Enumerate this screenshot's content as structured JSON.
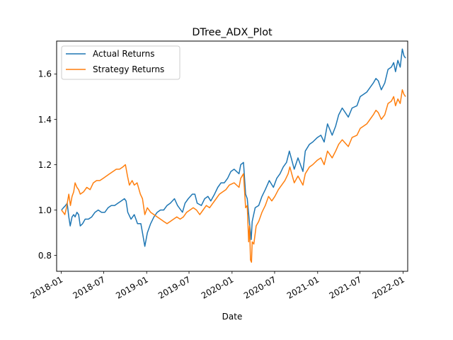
{
  "chart_data": {
    "type": "line",
    "title": "DTree_ADX_Plot",
    "xlabel": "Date",
    "ylabel": "",
    "xlim": [
      "2017-12-12",
      "2022-01-21"
    ],
    "ylim": [
      0.73,
      1.745
    ],
    "x_ticks": [
      {
        "date": "2018-01-01",
        "label": "2018-01"
      },
      {
        "date": "2018-07-01",
        "label": "2018-07"
      },
      {
        "date": "2019-01-01",
        "label": "2019-01"
      },
      {
        "date": "2019-07-01",
        "label": "2019-07"
      },
      {
        "date": "2020-01-01",
        "label": "2020-01"
      },
      {
        "date": "2020-07-01",
        "label": "2020-07"
      },
      {
        "date": "2021-01-01",
        "label": "2021-01"
      },
      {
        "date": "2021-07-01",
        "label": "2021-07"
      },
      {
        "date": "2022-01-01",
        "label": "2022-01"
      }
    ],
    "y_ticks": [
      {
        "value": 0.8,
        "label": "0.8"
      },
      {
        "value": 1.0,
        "label": "1.0"
      },
      {
        "value": 1.2,
        "label": "1.2"
      },
      {
        "value": 1.4,
        "label": "1.4"
      },
      {
        "value": 1.6,
        "label": "1.6"
      }
    ],
    "grid": false,
    "legend": "upper-left",
    "series": [
      {
        "name": "Actual Returns",
        "color": "#1f77b4",
        "points": [
          [
            "2018-01-02",
            1.0
          ],
          [
            "2018-01-10",
            1.01
          ],
          [
            "2018-01-19",
            1.02
          ],
          [
            "2018-01-26",
            1.03
          ],
          [
            "2018-02-02",
            0.97
          ],
          [
            "2018-02-08",
            0.93
          ],
          [
            "2018-02-16",
            0.97
          ],
          [
            "2018-02-23",
            0.98
          ],
          [
            "2018-03-01",
            0.97
          ],
          [
            "2018-03-09",
            0.99
          ],
          [
            "2018-03-16",
            0.98
          ],
          [
            "2018-03-23",
            0.93
          ],
          [
            "2018-04-02",
            0.94
          ],
          [
            "2018-04-13",
            0.96
          ],
          [
            "2018-04-27",
            0.96
          ],
          [
            "2018-05-11",
            0.97
          ],
          [
            "2018-05-25",
            0.99
          ],
          [
            "2018-06-08",
            1.0
          ],
          [
            "2018-06-22",
            0.99
          ],
          [
            "2018-07-06",
            0.99
          ],
          [
            "2018-07-20",
            1.01
          ],
          [
            "2018-08-03",
            1.02
          ],
          [
            "2018-08-17",
            1.02
          ],
          [
            "2018-08-31",
            1.03
          ],
          [
            "2018-09-14",
            1.04
          ],
          [
            "2018-09-28",
            1.05
          ],
          [
            "2018-10-05",
            1.04
          ],
          [
            "2018-10-12",
            0.99
          ],
          [
            "2018-10-26",
            0.96
          ],
          [
            "2018-11-09",
            0.98
          ],
          [
            "2018-11-23",
            0.94
          ],
          [
            "2018-12-07",
            0.94
          ],
          [
            "2018-12-14",
            0.9
          ],
          [
            "2018-12-24",
            0.84
          ],
          [
            "2019-01-04",
            0.9
          ],
          [
            "2019-01-18",
            0.94
          ],
          [
            "2019-02-01",
            0.97
          ],
          [
            "2019-02-15",
            0.99
          ],
          [
            "2019-03-01",
            1.0
          ],
          [
            "2019-03-15",
            1.0
          ],
          [
            "2019-03-29",
            1.02
          ],
          [
            "2019-04-12",
            1.03
          ],
          [
            "2019-04-30",
            1.05
          ],
          [
            "2019-05-13",
            1.02
          ],
          [
            "2019-06-03",
            0.99
          ],
          [
            "2019-06-14",
            1.03
          ],
          [
            "2019-06-28",
            1.05
          ],
          [
            "2019-07-15",
            1.07
          ],
          [
            "2019-07-26",
            1.07
          ],
          [
            "2019-08-05",
            1.03
          ],
          [
            "2019-08-23",
            1.02
          ],
          [
            "2019-09-06",
            1.05
          ],
          [
            "2019-09-20",
            1.06
          ],
          [
            "2019-10-02",
            1.04
          ],
          [
            "2019-10-18",
            1.07
          ],
          [
            "2019-11-01",
            1.1
          ],
          [
            "2019-11-15",
            1.12
          ],
          [
            "2019-11-29",
            1.12
          ],
          [
            "2019-12-13",
            1.14
          ],
          [
            "2019-12-27",
            1.17
          ],
          [
            "2020-01-10",
            1.18
          ],
          [
            "2020-01-31",
            1.16
          ],
          [
            "2020-02-07",
            1.2
          ],
          [
            "2020-02-19",
            1.21
          ],
          [
            "2020-02-28",
            1.07
          ],
          [
            "2020-03-06",
            1.05
          ],
          [
            "2020-03-16",
            0.94
          ],
          [
            "2020-03-23",
            0.87
          ],
          [
            "2020-03-27",
            0.95
          ],
          [
            "2020-04-09",
            1.01
          ],
          [
            "2020-04-24",
            1.02
          ],
          [
            "2020-05-08",
            1.06
          ],
          [
            "2020-05-22",
            1.09
          ],
          [
            "2020-06-08",
            1.13
          ],
          [
            "2020-06-26",
            1.1
          ],
          [
            "2020-07-10",
            1.14
          ],
          [
            "2020-07-24",
            1.16
          ],
          [
            "2020-08-07",
            1.19
          ],
          [
            "2020-08-21",
            1.21
          ],
          [
            "2020-09-02",
            1.26
          ],
          [
            "2020-09-23",
            1.18
          ],
          [
            "2020-10-09",
            1.23
          ],
          [
            "2020-10-30",
            1.17
          ],
          [
            "2020-11-09",
            1.26
          ],
          [
            "2020-11-27",
            1.29
          ],
          [
            "2020-12-11",
            1.3
          ],
          [
            "2020-12-31",
            1.32
          ],
          [
            "2021-01-15",
            1.33
          ],
          [
            "2021-01-29",
            1.3
          ],
          [
            "2021-02-12",
            1.38
          ],
          [
            "2021-03-04",
            1.33
          ],
          [
            "2021-03-19",
            1.37
          ],
          [
            "2021-04-01",
            1.42
          ],
          [
            "2021-04-16",
            1.45
          ],
          [
            "2021-05-12",
            1.41
          ],
          [
            "2021-05-28",
            1.45
          ],
          [
            "2021-06-18",
            1.46
          ],
          [
            "2021-07-02",
            1.5
          ],
          [
            "2021-07-16",
            1.51
          ],
          [
            "2021-07-30",
            1.52
          ],
          [
            "2021-08-13",
            1.54
          ],
          [
            "2021-08-27",
            1.56
          ],
          [
            "2021-09-07",
            1.58
          ],
          [
            "2021-09-17",
            1.57
          ],
          [
            "2021-09-30",
            1.53
          ],
          [
            "2021-10-15",
            1.56
          ],
          [
            "2021-10-29",
            1.62
          ],
          [
            "2021-11-12",
            1.63
          ],
          [
            "2021-11-22",
            1.65
          ],
          [
            "2021-11-30",
            1.61
          ],
          [
            "2021-12-10",
            1.66
          ],
          [
            "2021-12-20",
            1.63
          ],
          [
            "2021-12-29",
            1.71
          ],
          [
            "2022-01-05",
            1.68
          ],
          [
            "2022-01-12",
            1.67
          ]
        ]
      },
      {
        "name": "Strategy Returns",
        "color": "#ff7f0e",
        "points": [
          [
            "2018-01-02",
            1.0
          ],
          [
            "2018-01-09",
            0.99
          ],
          [
            "2018-01-16",
            0.98
          ],
          [
            "2018-01-23",
            1.01
          ],
          [
            "2018-02-02",
            1.07
          ],
          [
            "2018-02-09",
            1.02
          ],
          [
            "2018-02-16",
            1.06
          ],
          [
            "2018-02-23",
            1.08
          ],
          [
            "2018-03-01",
            1.12
          ],
          [
            "2018-03-09",
            1.1
          ],
          [
            "2018-03-16",
            1.09
          ],
          [
            "2018-03-23",
            1.07
          ],
          [
            "2018-04-06",
            1.08
          ],
          [
            "2018-04-20",
            1.1
          ],
          [
            "2018-05-04",
            1.09
          ],
          [
            "2018-05-18",
            1.12
          ],
          [
            "2018-06-01",
            1.13
          ],
          [
            "2018-06-15",
            1.13
          ],
          [
            "2018-06-29",
            1.14
          ],
          [
            "2018-07-13",
            1.15
          ],
          [
            "2018-07-27",
            1.16
          ],
          [
            "2018-08-10",
            1.17
          ],
          [
            "2018-08-24",
            1.18
          ],
          [
            "2018-09-07",
            1.18
          ],
          [
            "2018-09-21",
            1.19
          ],
          [
            "2018-10-02",
            1.2
          ],
          [
            "2018-10-11",
            1.15
          ],
          [
            "2018-10-19",
            1.11
          ],
          [
            "2018-10-31",
            1.13
          ],
          [
            "2018-11-09",
            1.11
          ],
          [
            "2018-11-21",
            1.12
          ],
          [
            "2018-12-05",
            1.07
          ],
          [
            "2018-12-14",
            1.05
          ],
          [
            "2018-12-24",
            0.98
          ],
          [
            "2019-01-04",
            1.01
          ],
          [
            "2019-01-18",
            0.99
          ],
          [
            "2019-02-01",
            0.98
          ],
          [
            "2019-02-15",
            0.97
          ],
          [
            "2019-03-01",
            0.96
          ],
          [
            "2019-03-15",
            0.95
          ],
          [
            "2019-03-29",
            0.94
          ],
          [
            "2019-04-12",
            0.95
          ],
          [
            "2019-04-26",
            0.96
          ],
          [
            "2019-05-10",
            0.97
          ],
          [
            "2019-05-24",
            0.96
          ],
          [
            "2019-06-07",
            0.97
          ],
          [
            "2019-06-21",
            0.99
          ],
          [
            "2019-07-05",
            1.0
          ],
          [
            "2019-07-19",
            1.01
          ],
          [
            "2019-08-02",
            1.0
          ],
          [
            "2019-08-16",
            0.98
          ],
          [
            "2019-08-30",
            1.0
          ],
          [
            "2019-09-13",
            1.02
          ],
          [
            "2019-09-27",
            1.01
          ],
          [
            "2019-10-11",
            1.03
          ],
          [
            "2019-10-25",
            1.05
          ],
          [
            "2019-11-08",
            1.07
          ],
          [
            "2019-11-22",
            1.08
          ],
          [
            "2019-12-06",
            1.09
          ],
          [
            "2019-12-20",
            1.11
          ],
          [
            "2020-01-10",
            1.12
          ],
          [
            "2020-01-31",
            1.1
          ],
          [
            "2020-02-07",
            1.14
          ],
          [
            "2020-02-19",
            1.16
          ],
          [
            "2020-02-28",
            1.01
          ],
          [
            "2020-03-06",
            1.02
          ],
          [
            "2020-03-12",
            0.86
          ],
          [
            "2020-03-16",
            0.93
          ],
          [
            "2020-03-20",
            0.78
          ],
          [
            "2020-03-24",
            0.77
          ],
          [
            "2020-03-27",
            0.86
          ],
          [
            "2020-04-03",
            0.85
          ],
          [
            "2020-04-13",
            0.93
          ],
          [
            "2020-04-24",
            0.95
          ],
          [
            "2020-05-08",
            0.99
          ],
          [
            "2020-05-22",
            1.02
          ],
          [
            "2020-06-05",
            1.06
          ],
          [
            "2020-06-19",
            1.04
          ],
          [
            "2020-07-02",
            1.06
          ],
          [
            "2020-07-17",
            1.09
          ],
          [
            "2020-07-31",
            1.11
          ],
          [
            "2020-08-14",
            1.13
          ],
          [
            "2020-08-28",
            1.16
          ],
          [
            "2020-09-04",
            1.19
          ],
          [
            "2020-09-23",
            1.12
          ],
          [
            "2020-10-09",
            1.15
          ],
          [
            "2020-10-30",
            1.11
          ],
          [
            "2020-11-09",
            1.16
          ],
          [
            "2020-11-27",
            1.19
          ],
          [
            "2020-12-11",
            1.2
          ],
          [
            "2020-12-31",
            1.22
          ],
          [
            "2021-01-15",
            1.23
          ],
          [
            "2021-01-29",
            1.2
          ],
          [
            "2021-02-12",
            1.26
          ],
          [
            "2021-03-04",
            1.23
          ],
          [
            "2021-03-19",
            1.26
          ],
          [
            "2021-04-01",
            1.29
          ],
          [
            "2021-04-16",
            1.31
          ],
          [
            "2021-05-12",
            1.28
          ],
          [
            "2021-05-28",
            1.32
          ],
          [
            "2021-06-18",
            1.33
          ],
          [
            "2021-07-02",
            1.36
          ],
          [
            "2021-07-16",
            1.37
          ],
          [
            "2021-07-30",
            1.38
          ],
          [
            "2021-08-13",
            1.4
          ],
          [
            "2021-08-27",
            1.42
          ],
          [
            "2021-09-07",
            1.44
          ],
          [
            "2021-09-17",
            1.43
          ],
          [
            "2021-09-30",
            1.4
          ],
          [
            "2021-10-15",
            1.42
          ],
          [
            "2021-10-29",
            1.47
          ],
          [
            "2021-11-12",
            1.48
          ],
          [
            "2021-11-22",
            1.5
          ],
          [
            "2021-11-30",
            1.46
          ],
          [
            "2021-12-10",
            1.49
          ],
          [
            "2021-12-20",
            1.47
          ],
          [
            "2021-12-29",
            1.53
          ],
          [
            "2022-01-05",
            1.51
          ],
          [
            "2022-01-12",
            1.5
          ]
        ]
      }
    ]
  }
}
